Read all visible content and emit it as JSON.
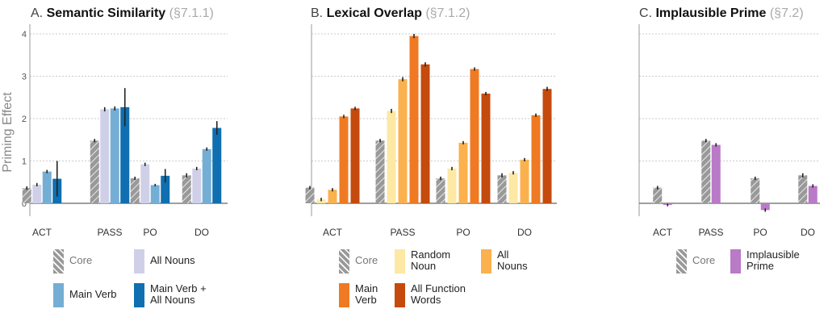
{
  "y_axis_label": "Priming Effect",
  "colors": {
    "core": "#999999",
    "all_nouns_a": "#cfd0e8",
    "main_verb_a": "#75aed5",
    "main_verb_all_nouns": "#0f6fb0",
    "random_noun": "#fde8a4",
    "all_nouns_b": "#fbb14d",
    "main_verb_b": "#ef7a23",
    "all_function_words": "#c44a0d",
    "implausible_prime": "#b97ac7"
  },
  "panels": [
    {
      "letter": "A.",
      "title": "Semantic Similarity",
      "section": "(§7.1.1)",
      "legend": [
        {
          "label": "Core",
          "color": "core"
        },
        {
          "label": "All Nouns",
          "color": "all_nouns_a"
        },
        {
          "label": "Main Verb",
          "color": "main_verb_a"
        },
        {
          "label": "Main Verb +\nAll Nouns",
          "color": "main_verb_all_nouns"
        }
      ]
    },
    {
      "letter": "B.",
      "title": "Lexical Overlap",
      "section": "(§7.1.2)",
      "legend": [
        {
          "label": "Core",
          "color": "core"
        },
        {
          "label": "Random\nNoun",
          "color": "random_noun"
        },
        {
          "label": "All\nNouns",
          "color": "all_nouns_b"
        },
        {
          "label": "Main\nVerb",
          "color": "main_verb_b"
        },
        {
          "label": "All Function\nWords",
          "color": "all_function_words"
        }
      ]
    },
    {
      "letter": "C.",
      "title": "Implausible Prime",
      "section": "(§7.2)",
      "legend": [
        {
          "label": "Core",
          "color": "core"
        },
        {
          "label": "Implausible\nPrime",
          "color": "implausible_prime"
        }
      ]
    }
  ],
  "chart_data": [
    {
      "type": "bar",
      "title": "Semantic Similarity",
      "ylabel": "Priming Effect",
      "ylim": [
        -0.35,
        4.2
      ],
      "yticks": [
        0,
        1,
        2,
        3,
        4
      ],
      "grid": true,
      "categories": [
        "ACT",
        "PASS",
        "PO",
        "DO"
      ],
      "series": [
        {
          "name": "Core",
          "color": "core",
          "hatched": true,
          "values": [
            0.36,
            1.48,
            0.59,
            0.66
          ],
          "err": [
            0.04,
            0.04,
            0.04,
            0.05
          ]
        },
        {
          "name": "All Nouns",
          "color": "all_nouns_a",
          "values": [
            0.44,
            2.22,
            0.92,
            0.82
          ],
          "err": [
            0.04,
            0.05,
            0.04,
            0.04
          ]
        },
        {
          "name": "Main Verb",
          "color": "main_verb_a",
          "values": [
            0.75,
            2.24,
            0.43,
            1.28
          ],
          "err": [
            0.04,
            0.05,
            0.03,
            0.04
          ]
        },
        {
          "name": "Main Verb + All Nouns",
          "color": "main_verb_all_nouns",
          "values": [
            0.58,
            2.27,
            0.65,
            1.78
          ],
          "err": [
            0.42,
            0.45,
            0.16,
            0.16
          ]
        }
      ]
    },
    {
      "type": "bar",
      "title": "Lexical Overlap",
      "ylim": [
        -0.35,
        4.2
      ],
      "yticks": [
        0,
        1,
        2,
        3,
        4
      ],
      "grid": true,
      "categories": [
        "ACT",
        "PASS",
        "PO",
        "DO"
      ],
      "series": [
        {
          "name": "Core",
          "color": "core",
          "hatched": true,
          "values": [
            0.37,
            1.48,
            0.59,
            0.66
          ],
          "err": [
            0.04,
            0.04,
            0.04,
            0.05
          ]
        },
        {
          "name": "Random Noun",
          "color": "random_noun",
          "values": [
            0.09,
            2.18,
            0.82,
            0.72
          ],
          "err": [
            0.04,
            0.05,
            0.04,
            0.04
          ]
        },
        {
          "name": "All Nouns",
          "color": "all_nouns_b",
          "values": [
            0.32,
            2.93,
            1.43,
            1.03
          ],
          "err": [
            0.04,
            0.05,
            0.04,
            0.04
          ]
        },
        {
          "name": "Main Verb",
          "color": "main_verb_b",
          "values": [
            2.05,
            3.95,
            3.17,
            2.08
          ],
          "err": [
            0.04,
            0.05,
            0.04,
            0.04
          ]
        },
        {
          "name": "All Function Words",
          "color": "all_function_words",
          "values": [
            2.24,
            3.28,
            2.59,
            2.7
          ],
          "err": [
            0.04,
            0.05,
            0.04,
            0.05
          ]
        }
      ]
    },
    {
      "type": "bar",
      "title": "Implausible Prime",
      "ylim": [
        -0.35,
        4.2
      ],
      "yticks": [
        0,
        1,
        2,
        3,
        4
      ],
      "grid": true,
      "categories": [
        "ACT",
        "PASS",
        "PO",
        "DO"
      ],
      "series": [
        {
          "name": "Core",
          "color": "core",
          "hatched": true,
          "values": [
            0.37,
            1.48,
            0.59,
            0.66
          ],
          "err": [
            0.04,
            0.04,
            0.04,
            0.05
          ]
        },
        {
          "name": "Implausible Prime",
          "color": "implausible_prime",
          "values": [
            -0.04,
            1.38,
            -0.16,
            0.41
          ],
          "err": [
            0.03,
            0.04,
            0.04,
            0.04
          ]
        }
      ]
    }
  ]
}
